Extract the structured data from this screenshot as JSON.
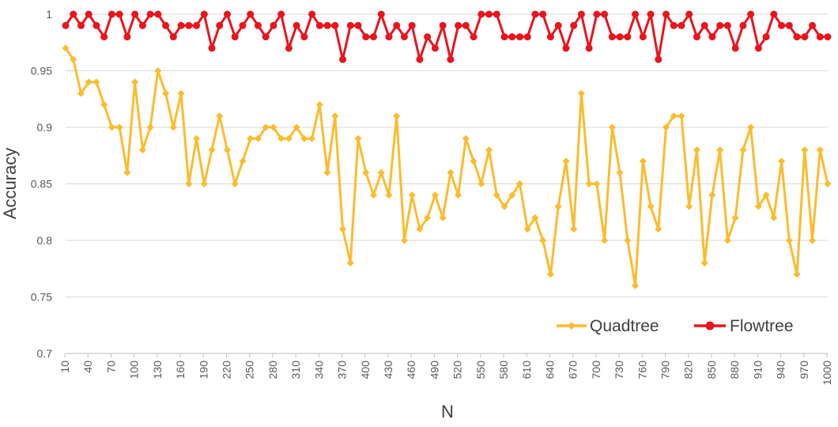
{
  "chart_data": {
    "type": "line",
    "title": "",
    "xlabel": "N",
    "ylabel": "Accuracy",
    "ylim": [
      0.7,
      1.0
    ],
    "yticks": [
      0.7,
      0.75,
      0.8,
      0.85,
      0.9,
      0.95,
      1.0
    ],
    "ytick_labels": [
      "0.7",
      "0.75",
      "0.8",
      "0.85",
      "0.9",
      "0.95",
      "1"
    ],
    "xtick_labels": [
      "10",
      "40",
      "70",
      "100",
      "130",
      "160",
      "190",
      "220",
      "250",
      "280",
      "310",
      "340",
      "370",
      "400",
      "430",
      "460",
      "490",
      "520",
      "550",
      "580",
      "610",
      "640",
      "670",
      "700",
      "730",
      "760",
      "790",
      "820",
      "850",
      "880",
      "910",
      "940",
      "970",
      "1000"
    ],
    "grid": "horizontal",
    "legend_position": "bottom-right",
    "x": [
      10,
      20,
      30,
      40,
      50,
      60,
      70,
      80,
      90,
      100,
      110,
      120,
      130,
      140,
      150,
      160,
      170,
      180,
      190,
      200,
      210,
      220,
      230,
      240,
      250,
      260,
      270,
      280,
      290,
      300,
      310,
      320,
      330,
      340,
      350,
      360,
      370,
      380,
      390,
      400,
      410,
      420,
      430,
      440,
      450,
      460,
      470,
      480,
      490,
      500,
      510,
      520,
      530,
      540,
      550,
      560,
      570,
      580,
      590,
      600,
      610,
      620,
      630,
      640,
      650,
      660,
      670,
      680,
      690,
      700,
      710,
      720,
      730,
      740,
      750,
      760,
      770,
      780,
      790,
      800,
      810,
      820,
      830,
      840,
      850,
      860,
      870,
      880,
      890,
      900,
      910,
      920,
      930,
      940,
      950,
      960,
      970,
      980,
      990,
      1000
    ],
    "series": [
      {
        "name": "Quadtree",
        "color": "#FBBC2D",
        "values": [
          0.97,
          0.96,
          0.93,
          0.94,
          0.94,
          0.92,
          0.9,
          0.9,
          0.86,
          0.94,
          0.88,
          0.9,
          0.95,
          0.93,
          0.9,
          0.93,
          0.85,
          0.89,
          0.85,
          0.88,
          0.91,
          0.88,
          0.85,
          0.87,
          0.89,
          0.89,
          0.9,
          0.9,
          0.89,
          0.89,
          0.9,
          0.89,
          0.89,
          0.92,
          0.86,
          0.91,
          0.81,
          0.78,
          0.89,
          0.86,
          0.84,
          0.86,
          0.84,
          0.91,
          0.8,
          0.84,
          0.81,
          0.82,
          0.84,
          0.82,
          0.86,
          0.84,
          0.89,
          0.87,
          0.85,
          0.88,
          0.84,
          0.83,
          0.84,
          0.85,
          0.81,
          0.82,
          0.8,
          0.77,
          0.83,
          0.87,
          0.81,
          0.93,
          0.85,
          0.85,
          0.8,
          0.9,
          0.86,
          0.8,
          0.76,
          0.87,
          0.83,
          0.81,
          0.9,
          0.91,
          0.91,
          0.83,
          0.88,
          0.78,
          0.84,
          0.88,
          0.8,
          0.82,
          0.88,
          0.9,
          0.83,
          0.84,
          0.82,
          0.87,
          0.8,
          0.77,
          0.88,
          0.8,
          0.88,
          0.85
        ]
      },
      {
        "name": "Flowtree",
        "color": "#E8141E",
        "values": [
          0.99,
          1.0,
          0.99,
          1.0,
          0.99,
          0.98,
          1.0,
          1.0,
          0.98,
          1.0,
          0.99,
          1.0,
          1.0,
          0.99,
          0.98,
          0.99,
          0.99,
          0.99,
          1.0,
          0.97,
          0.99,
          1.0,
          0.98,
          0.99,
          1.0,
          0.99,
          0.98,
          0.99,
          1.0,
          0.97,
          0.99,
          0.98,
          1.0,
          0.99,
          0.99,
          0.99,
          0.96,
          0.99,
          0.99,
          0.98,
          0.98,
          1.0,
          0.98,
          0.99,
          0.98,
          0.99,
          0.96,
          0.98,
          0.97,
          0.99,
          0.96,
          0.99,
          0.99,
          0.98,
          1.0,
          1.0,
          1.0,
          0.98,
          0.98,
          0.98,
          0.98,
          1.0,
          1.0,
          0.98,
          0.99,
          0.97,
          0.99,
          1.0,
          0.97,
          1.0,
          1.0,
          0.98,
          0.98,
          0.98,
          1.0,
          0.98,
          1.0,
          0.96,
          1.0,
          0.99,
          0.99,
          1.0,
          0.98,
          0.99,
          0.98,
          0.99,
          0.99,
          0.97,
          0.99,
          1.0,
          0.97,
          0.98,
          1.0,
          0.99,
          0.99,
          0.98,
          0.98,
          0.99,
          0.98,
          0.98
        ]
      }
    ]
  }
}
